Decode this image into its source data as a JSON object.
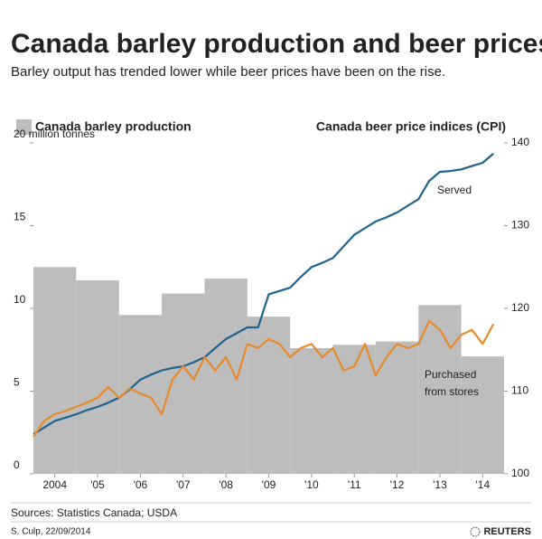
{
  "chart_data": {
    "type": "bar-line",
    "title": "Canada barley production and beer prices",
    "subtitle": "Barley output has trended lower while beer prices have been on the rise.",
    "left_header": "Canada barley production",
    "right_header": "Canada beer price indices (CPI)",
    "xlim": [
      2003.5,
      2014.5
    ],
    "xticks": [
      {
        "value": 2004,
        "label": "2004"
      },
      {
        "value": 2005,
        "label": "'05"
      },
      {
        "value": 2006,
        "label": "'06"
      },
      {
        "value": 2007,
        "label": "'07"
      },
      {
        "value": 2008,
        "label": "'08"
      },
      {
        "value": 2009,
        "label": "'09"
      },
      {
        "value": 2010,
        "label": "'10"
      },
      {
        "value": 2011,
        "label": "'11"
      },
      {
        "value": 2012,
        "label": "'12"
      },
      {
        "value": 2013,
        "label": "'13"
      },
      {
        "value": 2014,
        "label": "'14"
      }
    ],
    "ylim": [
      0,
      20
    ],
    "yticks": [
      0,
      5,
      10,
      15,
      {
        "value": 20,
        "label": "20 million tonnes"
      }
    ],
    "y2lim": [
      100,
      140
    ],
    "y2ticks": [
      100,
      110,
      120,
      130,
      140
    ],
    "bars": {
      "color": "#bdbdbd",
      "x": [
        2004,
        2005,
        2006,
        2007,
        2008,
        2009,
        2010,
        2011,
        2012,
        2013,
        2014
      ],
      "values": [
        12.5,
        11.7,
        9.6,
        10.9,
        11.8,
        9.5,
        7.6,
        7.8,
        8.0,
        10.2,
        7.1
      ]
    },
    "x": [
      2003.5,
      2003.75,
      2004,
      2004.25,
      2004.5,
      2004.75,
      2005,
      2005.25,
      2005.5,
      2005.75,
      2006,
      2006.25,
      2006.5,
      2006.75,
      2007,
      2007.25,
      2007.5,
      2007.75,
      2008,
      2008.25,
      2008.5,
      2008.75,
      2009,
      2009.25,
      2009.5,
      2009.75,
      2010,
      2010.25,
      2010.5,
      2010.75,
      2011,
      2011.25,
      2011.5,
      2011.75,
      2012,
      2012.25,
      2012.5,
      2012.75,
      2013,
      2013.25,
      2013.5,
      2013.75,
      2014,
      2014.25
    ],
    "series": [
      {
        "name": "Served",
        "color": "#1f6391",
        "axis": "y2",
        "values": [
          104.8,
          105.6,
          106.4,
          106.8,
          107.2,
          107.7,
          108.1,
          108.6,
          109.2,
          110.2,
          111.4,
          112.0,
          112.5,
          112.8,
          113.0,
          113.5,
          114.1,
          115.2,
          116.3,
          117.0,
          117.7,
          117.7,
          121.7,
          122.1,
          122.5,
          123.8,
          125.0,
          125.5,
          126.1,
          127.5,
          128.9,
          129.7,
          130.5,
          131.0,
          131.6,
          132.4,
          133.2,
          135.4,
          136.5,
          136.6,
          136.8,
          137.2,
          137.6,
          138.7
        ]
      },
      {
        "name": "Purchased from stores",
        "color": "#e8892b",
        "axis": "y2",
        "values": [
          104.5,
          106.4,
          107.2,
          107.6,
          108.1,
          108.6,
          109.2,
          110.5,
          109.2,
          110.3,
          109.7,
          109.2,
          107.2,
          111.4,
          113.0,
          111.4,
          114.1,
          112.5,
          114.1,
          111.4,
          115.7,
          115.2,
          116.3,
          115.7,
          114.1,
          115.2,
          115.7,
          114.1,
          115.2,
          112.5,
          113.0,
          115.7,
          111.9,
          114.1,
          115.7,
          115.2,
          115.7,
          118.5,
          117.4,
          115.2,
          116.8,
          117.4,
          115.7,
          118.1
        ]
      }
    ],
    "annotations": [
      "Served",
      "Purchased",
      "from stores"
    ],
    "source": "Sources: Statistics Canada; USDA",
    "credit": "S. Culp, 22/09/2014",
    "brand": "REUTERS"
  }
}
